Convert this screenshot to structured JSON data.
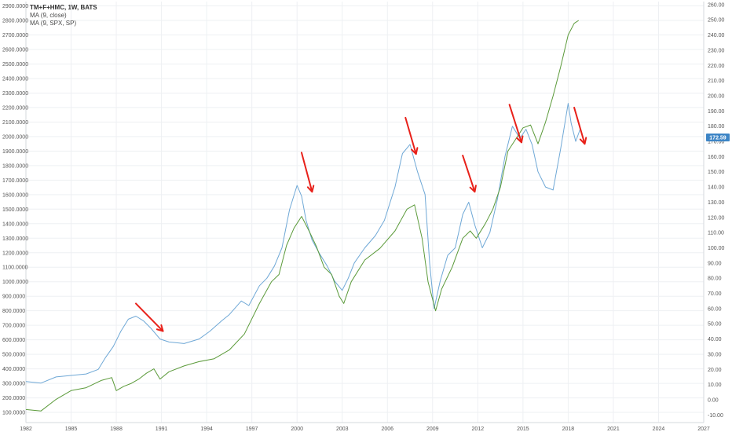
{
  "legend": {
    "symbol": "TM+F+HMC, 1W, BATS",
    "ma1": "MA (9, close)",
    "ma2": "MA (9, SPX, SP)"
  },
  "last_price": "172.59",
  "colors": {
    "blue_line": "#6fa8d6",
    "green_line": "#5b9a3a",
    "arrow": "#e8211a",
    "grid": "#eef0f3",
    "badge": "#3d85c6"
  },
  "chart_data": {
    "type": "line",
    "x_ticks": [
      "1982",
      "1985",
      "1988",
      "1991",
      "1994",
      "1997",
      "2000",
      "2003",
      "2006",
      "2009",
      "2012",
      "2015",
      "2018",
      "2021",
      "2024",
      "2027"
    ],
    "xlim": [
      1982,
      2027
    ],
    "y_left_ticks": [
      "100.0000",
      "200.0000",
      "300.0000",
      "400.0000",
      "500.0000",
      "600.0000",
      "700.0000",
      "800.0000",
      "900.0000",
      "1000.0000",
      "1100.0000",
      "1200.0000",
      "1300.0000",
      "1400.0000",
      "1500.0000",
      "1600.0000",
      "1700.0000",
      "1800.0000",
      "1900.0000",
      "2000.0000",
      "2100.0000",
      "2200.0000",
      "2300.0000",
      "2400.0000",
      "2500.0000",
      "2600.0000",
      "2700.0000",
      "2800.0000",
      "2900.0000"
    ],
    "ylim_left": [
      30,
      2930
    ],
    "y_right_ticks": [
      "-10.00",
      "0.00",
      "10.00",
      "20.00",
      "30.00",
      "40.00",
      "50.00",
      "60.00",
      "70.00",
      "80.00",
      "90.00",
      "100.00",
      "110.00",
      "120.00",
      "130.00",
      "140.00",
      "150.00",
      "160.00",
      "170.00",
      "180.00",
      "190.00",
      "200.00",
      "210.00",
      "220.00",
      "230.00",
      "240.00",
      "250.00",
      "260.00"
    ],
    "ylim_right": [
      -15,
      262
    ],
    "series": [
      {
        "name": "MA (9, close)",
        "axis": "right",
        "x": [
          1982.0,
          1983.0,
          1984.0,
          1985.0,
          1986.0,
          1986.8,
          1987.3,
          1987.8,
          1988.3,
          1988.8,
          1989.3,
          1989.8,
          1990.3,
          1990.9,
          1991.5,
          1992.5,
          1993.5,
          1994.2,
          1995.0,
          1995.5,
          1996.3,
          1996.8,
          1997.5,
          1998.0,
          1998.5,
          1999.0,
          1999.5,
          2000.0,
          2000.3,
          2000.6,
          2001.0,
          2001.5,
          2002.0,
          2002.5,
          2003.0,
          2003.4,
          2003.8,
          2004.5,
          2005.2,
          2005.8,
          2006.5,
          2007.0,
          2007.5,
          2008.0,
          2008.5,
          2008.8,
          2009.1,
          2009.5,
          2010.0,
          2010.5,
          2011.0,
          2011.4,
          2011.8,
          2012.3,
          2012.8,
          2013.3,
          2013.8,
          2014.3,
          2014.8,
          2015.2,
          2015.6,
          2016.0,
          2016.5,
          2017.0,
          2017.5,
          2018.0,
          2018.2,
          2018.5,
          2018.8
        ],
        "y": [
          12,
          11,
          15,
          16,
          17,
          20,
          28,
          35,
          45,
          53,
          55,
          52,
          47,
          40,
          38,
          37,
          40,
          45,
          52,
          56,
          65,
          62,
          75,
          80,
          88,
          100,
          125,
          141,
          134,
          118,
          105,
          96,
          88,
          78,
          72,
          80,
          90,
          100,
          108,
          118,
          140,
          162,
          168,
          150,
          135,
          90,
          60,
          78,
          95,
          100,
          122,
          130,
          115,
          100,
          110,
          132,
          160,
          180,
          172,
          178,
          168,
          150,
          140,
          138,
          165,
          195,
          182,
          170,
          178
        ]
      },
      {
        "name": "MA (9, SPX, SP)",
        "axis": "left",
        "x": [
          1982.0,
          1983.0,
          1984.0,
          1985.0,
          1986.0,
          1987.0,
          1987.7,
          1988.0,
          1988.5,
          1989.0,
          1989.5,
          1990.0,
          1990.5,
          1990.9,
          1991.5,
          1992.5,
          1993.5,
          1994.5,
          1995.5,
          1996.5,
          1997.5,
          1998.3,
          1998.8,
          1999.3,
          1999.8,
          2000.3,
          2000.8,
          2001.3,
          2001.8,
          2002.3,
          2002.8,
          2003.1,
          2003.6,
          2004.5,
          2005.5,
          2006.5,
          2007.3,
          2007.8,
          2008.3,
          2008.7,
          2009.2,
          2009.6,
          2010.3,
          2011.0,
          2011.5,
          2011.9,
          2012.5,
          2013.0,
          2013.5,
          2014.0,
          2014.5,
          2015.0,
          2015.5,
          2016.0,
          2016.5,
          2017.0,
          2017.5,
          2018.0,
          2018.4,
          2018.7
        ],
        "y": [
          120,
          110,
          190,
          250,
          270,
          320,
          340,
          250,
          280,
          300,
          330,
          370,
          400,
          330,
          380,
          420,
          450,
          470,
          530,
          640,
          850,
          1000,
          1050,
          1250,
          1370,
          1450,
          1350,
          1240,
          1100,
          1050,
          900,
          850,
          1000,
          1150,
          1230,
          1350,
          1500,
          1530,
          1300,
          1000,
          800,
          950,
          1100,
          1300,
          1350,
          1300,
          1400,
          1500,
          1650,
          1900,
          1980,
          2060,
          2080,
          1950,
          2100,
          2280,
          2480,
          2700,
          2780,
          2800
        ]
      }
    ],
    "annotations": [
      {
        "type": "arrow",
        "from": [
          1989.3,
          850
        ],
        "to": [
          1991.1,
          660
        ]
      },
      {
        "type": "arrow",
        "from": [
          2000.3,
          1890
        ],
        "to": [
          2001.0,
          1620
        ]
      },
      {
        "type": "arrow",
        "from": [
          2007.2,
          2130
        ],
        "to": [
          2007.9,
          1880
        ]
      },
      {
        "type": "arrow",
        "from": [
          2011.0,
          1870
        ],
        "to": [
          2011.8,
          1620
        ]
      },
      {
        "type": "arrow",
        "from": [
          2014.1,
          2220
        ],
        "to": [
          2014.9,
          1960
        ]
      },
      {
        "type": "arrow",
        "from": [
          2018.4,
          2200
        ],
        "to": [
          2019.1,
          1950
        ]
      }
    ],
    "grid": true
  }
}
